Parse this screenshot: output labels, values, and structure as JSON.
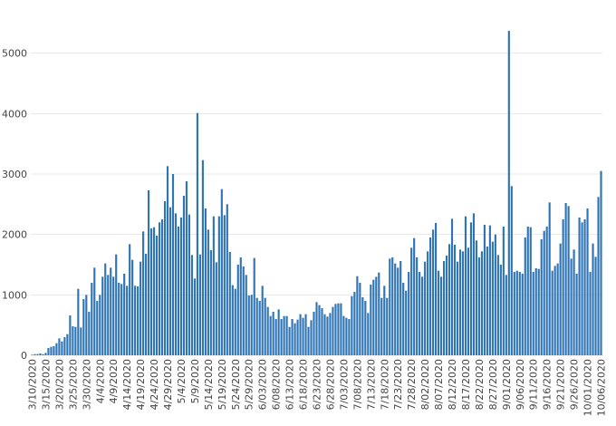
{
  "chart_data": {
    "type": "bar",
    "color": "#2f75b5",
    "grid": true,
    "ylim": [
      0,
      5400
    ],
    "yticks": [
      0,
      1000,
      2000,
      3000,
      4000,
      5000
    ],
    "categories": [
      "3/10/2020",
      null,
      null,
      null,
      null,
      "3/15/2020",
      null,
      null,
      null,
      null,
      "3/20/2020",
      null,
      null,
      null,
      null,
      "3/25/2020",
      null,
      null,
      null,
      null,
      "3/30/2020",
      null,
      null,
      null,
      null,
      "4/4/2020",
      null,
      null,
      null,
      null,
      "4/9/2020",
      null,
      null,
      null,
      null,
      "4/14/2020",
      null,
      null,
      null,
      null,
      "4/19/2020",
      null,
      null,
      null,
      null,
      "4/24/2020",
      null,
      null,
      null,
      null,
      "4/29/2020",
      null,
      null,
      null,
      null,
      "5/4/2020",
      null,
      null,
      null,
      null,
      "5/9/2020",
      null,
      null,
      null,
      null,
      "5/14/2020",
      null,
      null,
      null,
      null,
      "5/19/2020",
      null,
      null,
      null,
      null,
      "5/24/2020",
      null,
      null,
      null,
      null,
      "5/29/2020",
      null,
      null,
      null,
      null,
      "6/03/2020",
      null,
      null,
      null,
      null,
      "6/08/2020",
      null,
      null,
      null,
      null,
      "6/13/2020",
      null,
      null,
      null,
      null,
      "6/18/2020",
      null,
      null,
      null,
      null,
      "6/23/2020",
      null,
      null,
      null,
      null,
      "6/28/2020",
      null,
      null,
      null,
      null,
      "7/03/2020",
      null,
      null,
      null,
      null,
      "7/08/2020",
      null,
      null,
      null,
      null,
      "7/13/2020",
      null,
      null,
      null,
      null,
      "7/18/2020",
      null,
      null,
      null,
      null,
      "7/23/2020",
      null,
      null,
      null,
      null,
      "7/28/2020",
      null,
      null,
      null,
      null,
      "8/02/2020",
      null,
      null,
      null,
      null,
      "8/07/2020",
      null,
      null,
      null,
      null,
      "8/12/2020",
      null,
      null,
      null,
      null,
      "8/17/2020",
      null,
      null,
      null,
      null,
      "8/22/2020",
      null,
      null,
      null,
      null,
      "8/27/2020",
      null,
      null,
      null,
      null,
      "9/01/2020",
      null,
      null,
      null,
      null,
      "9/06/2020",
      null,
      null,
      null,
      null,
      "9/11/2020",
      null,
      null,
      null,
      null,
      "9/16/2020",
      null,
      null,
      null,
      null,
      "9/21/2020",
      null,
      null,
      null,
      null,
      "9/26/2020",
      null,
      null,
      null,
      null,
      "10/01/2020",
      null,
      null,
      null,
      null,
      "10/06/2020"
    ],
    "values": [
      10,
      20,
      20,
      30,
      20,
      40,
      120,
      140,
      150,
      200,
      280,
      230,
      300,
      350,
      660,
      480,
      470,
      1100,
      460,
      930,
      1000,
      720,
      1200,
      1450,
      900,
      1000,
      1300,
      1520,
      1330,
      1450,
      1300,
      1670,
      1200,
      1180,
      1350,
      1150,
      1840,
      1580,
      1150,
      1140,
      1550,
      2050,
      1680,
      2730,
      2100,
      2120,
      1980,
      2200,
      2250,
      2550,
      3130,
      2450,
      3000,
      2350,
      2130,
      2280,
      2640,
      2880,
      2330,
      1660,
      1270,
      4010,
      1670,
      3230,
      2430,
      2080,
      1740,
      2300,
      1540,
      2300,
      2750,
      2320,
      2500,
      1710,
      1160,
      1100,
      1500,
      1620,
      1470,
      1330,
      990,
      1000,
      1610,
      950,
      900,
      1150,
      950,
      800,
      650,
      720,
      600,
      760,
      600,
      650,
      650,
      470,
      600,
      530,
      590,
      680,
      620,
      680,
      470,
      580,
      720,
      880,
      830,
      780,
      680,
      640,
      700,
      800,
      850,
      860,
      860,
      650,
      620,
      600,
      980,
      1050,
      1310,
      1200,
      960,
      900,
      700,
      1170,
      1250,
      1300,
      1370,
      950,
      1150,
      950,
      1600,
      1620,
      1520,
      1450,
      1560,
      1200,
      1070,
      1380,
      1780,
      1940,
      1620,
      1380,
      1300,
      1550,
      1720,
      1950,
      2080,
      2190,
      1400,
      1300,
      1560,
      1650,
      1840,
      2260,
      1830,
      1550,
      1750,
      1720,
      2300,
      1780,
      2200,
      2350,
      1900,
      1620,
      1720,
      2160,
      1800,
      2150,
      1880,
      2000,
      1660,
      1500,
      2130,
      1330,
      5370,
      2800,
      1380,
      1400,
      1380,
      1350,
      1950,
      2130,
      2120,
      1380,
      1440,
      1430,
      1920,
      2060,
      2130,
      2530,
      1400,
      1480,
      1520,
      1850,
      2250,
      2520,
      2470,
      1600,
      1750,
      1350,
      2280,
      2200,
      2250,
      2430,
      1380,
      1850,
      1630,
      2620,
      3050
    ]
  }
}
